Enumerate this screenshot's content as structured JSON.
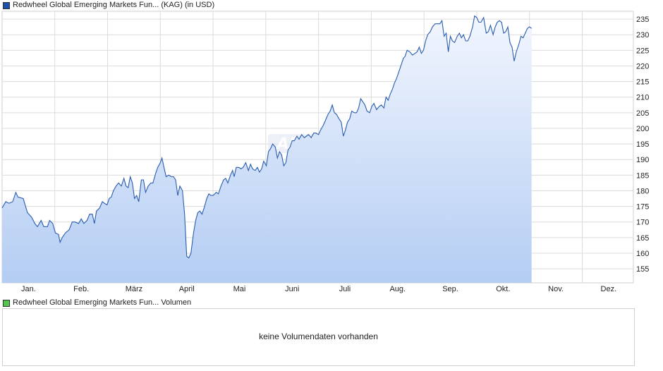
{
  "price_legend": {
    "name": "Redwheel Global Emerging Markets Fun...",
    "type": "(KAG)",
    "currency": "(in USD)",
    "color": "#1c4fb0"
  },
  "volume_legend": {
    "name": "Redwheel Global Emerging Markets Fun...",
    "label": "Volumen",
    "color": "#4fc64f"
  },
  "volume_message": "keine Volumendaten vorhanden",
  "watermark": "ARIVA.DE",
  "chart_data": {
    "type": "area",
    "title": "",
    "xlabel": "",
    "ylabel": "",
    "ylim": [
      150.5,
      237.5
    ],
    "yticks": [
      155,
      160,
      165,
      170,
      175,
      180,
      185,
      190,
      195,
      200,
      205,
      210,
      215,
      220,
      225,
      230,
      235
    ],
    "x_range": [
      0,
      11.97
    ],
    "month_ticks": [
      {
        "label": "Jan.",
        "pos": 0.5
      },
      {
        "label": "Feb.",
        "pos": 1.5
      },
      {
        "label": "März",
        "pos": 2.5
      },
      {
        "label": "April",
        "pos": 3.5
      },
      {
        "label": "Mai",
        "pos": 4.5
      },
      {
        "label": "Juni",
        "pos": 5.5
      },
      {
        "label": "Juli",
        "pos": 6.5
      },
      {
        "label": "Aug.",
        "pos": 7.5
      },
      {
        "label": "Sep.",
        "pos": 8.5
      },
      {
        "label": "Okt.",
        "pos": 9.5
      },
      {
        "label": "Nov.",
        "pos": 10.5
      },
      {
        "label": "Dez.",
        "pos": 11.5
      }
    ],
    "grid": true,
    "series": [
      {
        "line_color": "#2a5db0",
        "fill_top": "#f2f6fe",
        "fill_bottom": "#b4cdf3",
        "points": [
          [
            0.0,
            174.5
          ],
          [
            0.07,
            176.5
          ],
          [
            0.13,
            176.0
          ],
          [
            0.2,
            176.5
          ],
          [
            0.26,
            179.5
          ],
          [
            0.3,
            178.0
          ],
          [
            0.4,
            177.5
          ],
          [
            0.48,
            173.0
          ],
          [
            0.56,
            171.5
          ],
          [
            0.62,
            169.5
          ],
          [
            0.67,
            168.5
          ],
          [
            0.74,
            170.5
          ],
          [
            0.79,
            168.5
          ],
          [
            0.86,
            168.5
          ],
          [
            0.9,
            170.5
          ],
          [
            0.96,
            169.5
          ],
          [
            1.01,
            166.5
          ],
          [
            1.07,
            166.0
          ],
          [
            1.1,
            163.5
          ],
          [
            1.14,
            165.0
          ],
          [
            1.2,
            166.5
          ],
          [
            1.27,
            167.5
          ],
          [
            1.33,
            170.0
          ],
          [
            1.38,
            170.0
          ],
          [
            1.45,
            169.5
          ],
          [
            1.5,
            171.0
          ],
          [
            1.55,
            169.5
          ],
          [
            1.61,
            170.5
          ],
          [
            1.66,
            172.5
          ],
          [
            1.71,
            172.5
          ],
          [
            1.75,
            169.5
          ],
          [
            1.79,
            173.5
          ],
          [
            1.85,
            174.5
          ],
          [
            1.9,
            176.5
          ],
          [
            1.94,
            176.0
          ],
          [
            1.99,
            175.5
          ],
          [
            2.03,
            177.5
          ],
          [
            2.07,
            178.0
          ],
          [
            2.11,
            180.0
          ],
          [
            2.16,
            181.5
          ],
          [
            2.21,
            182.5
          ],
          [
            2.26,
            181.5
          ],
          [
            2.31,
            184.0
          ],
          [
            2.35,
            181.5
          ],
          [
            2.39,
            181.0
          ],
          [
            2.43,
            184.5
          ],
          [
            2.47,
            182.5
          ],
          [
            2.51,
            177.5
          ],
          [
            2.55,
            178.5
          ],
          [
            2.59,
            176.5
          ],
          [
            2.64,
            183.5
          ],
          [
            2.68,
            183.5
          ],
          [
            2.72,
            179.5
          ],
          [
            2.77,
            181.5
          ],
          [
            2.82,
            182.5
          ],
          [
            2.86,
            182.5
          ],
          [
            2.91,
            185.5
          ],
          [
            2.95,
            187.5
          ],
          [
            3.0,
            189.0
          ],
          [
            3.03,
            190.5
          ],
          [
            3.07,
            187.5
          ],
          [
            3.11,
            184.5
          ],
          [
            3.16,
            185.0
          ],
          [
            3.21,
            184.5
          ],
          [
            3.25,
            184.5
          ],
          [
            3.29,
            183.5
          ],
          [
            3.33,
            178.5
          ],
          [
            3.37,
            181.5
          ],
          [
            3.42,
            180.0
          ],
          [
            3.46,
            172.5
          ],
          [
            3.5,
            159.0
          ],
          [
            3.54,
            158.5
          ],
          [
            3.58,
            160.0
          ],
          [
            3.63,
            166.5
          ],
          [
            3.67,
            170.5
          ],
          [
            3.71,
            173.0
          ],
          [
            3.75,
            173.5
          ],
          [
            3.79,
            172.5
          ],
          [
            3.83,
            174.5
          ],
          [
            3.88,
            177.5
          ],
          [
            3.92,
            179.0
          ],
          [
            3.96,
            178.5
          ],
          [
            4.0,
            178.5
          ],
          [
            4.06,
            179.5
          ],
          [
            4.1,
            179.0
          ],
          [
            4.15,
            181.5
          ],
          [
            4.2,
            183.5
          ],
          [
            4.24,
            184.0
          ],
          [
            4.28,
            182.5
          ],
          [
            4.33,
            185.0
          ],
          [
            4.37,
            186.5
          ],
          [
            4.4,
            184.5
          ],
          [
            4.44,
            187.5
          ],
          [
            4.49,
            187.5
          ],
          [
            4.53,
            187.0
          ],
          [
            4.57,
            187.5
          ],
          [
            4.62,
            189.0
          ],
          [
            4.67,
            186.5
          ],
          [
            4.71,
            188.5
          ],
          [
            4.75,
            187.0
          ],
          [
            4.8,
            186.5
          ],
          [
            4.84,
            187.5
          ],
          [
            4.88,
            186.0
          ],
          [
            4.92,
            187.0
          ],
          [
            4.96,
            189.5
          ],
          [
            5.01,
            188.0
          ],
          [
            5.05,
            192.5
          ],
          [
            5.09,
            193.5
          ],
          [
            5.13,
            195.0
          ],
          [
            5.18,
            194.0
          ],
          [
            5.22,
            190.5
          ],
          [
            5.26,
            192.5
          ],
          [
            5.3,
            191.5
          ],
          [
            5.34,
            188.0
          ],
          [
            5.38,
            189.0
          ],
          [
            5.42,
            193.0
          ],
          [
            5.46,
            194.0
          ],
          [
            5.5,
            196.0
          ],
          [
            5.54,
            196.0
          ],
          [
            5.59,
            197.5
          ],
          [
            5.63,
            196.5
          ],
          [
            5.68,
            198.0
          ],
          [
            5.73,
            197.0
          ],
          [
            5.77,
            197.5
          ],
          [
            5.81,
            198.0
          ],
          [
            5.86,
            197.0
          ],
          [
            5.91,
            198.5
          ],
          [
            5.95,
            198.5
          ],
          [
            6.0,
            198.0
          ],
          [
            6.04,
            199.5
          ],
          [
            6.09,
            201.0
          ],
          [
            6.13,
            202.5
          ],
          [
            6.18,
            204.5
          ],
          [
            6.22,
            205.5
          ],
          [
            6.26,
            207.5
          ],
          [
            6.3,
            205.0
          ],
          [
            6.34,
            204.5
          ],
          [
            6.39,
            203.0
          ],
          [
            6.43,
            202.0
          ],
          [
            6.47,
            197.5
          ],
          [
            6.51,
            199.5
          ],
          [
            6.55,
            202.0
          ],
          [
            6.59,
            203.0
          ],
          [
            6.63,
            205.5
          ],
          [
            6.68,
            205.0
          ],
          [
            6.72,
            205.0
          ],
          [
            6.76,
            206.5
          ],
          [
            6.8,
            209.5
          ],
          [
            6.84,
            208.5
          ],
          [
            6.88,
            207.5
          ],
          [
            6.92,
            205.5
          ],
          [
            6.97,
            205.0
          ],
          [
            7.01,
            207.0
          ],
          [
            7.05,
            208.0
          ],
          [
            7.1,
            206.0
          ],
          [
            7.15,
            207.0
          ],
          [
            7.19,
            207.5
          ],
          [
            7.24,
            206.5
          ],
          [
            7.28,
            210.0
          ],
          [
            7.32,
            209.0
          ],
          [
            7.36,
            211.0
          ],
          [
            7.4,
            212.5
          ],
          [
            7.44,
            214.5
          ],
          [
            7.48,
            216.0
          ],
          [
            7.52,
            218.0
          ],
          [
            7.56,
            220.0
          ],
          [
            7.61,
            222.5
          ],
          [
            7.64,
            223.0
          ],
          [
            7.68,
            225.0
          ],
          [
            7.73,
            224.5
          ],
          [
            7.78,
            223.5
          ],
          [
            7.83,
            224.0
          ],
          [
            7.87,
            224.5
          ],
          [
            7.91,
            226.0
          ],
          [
            7.95,
            224.0
          ],
          [
            7.99,
            225.0
          ],
          [
            8.03,
            228.0
          ],
          [
            8.07,
            230.0
          ],
          [
            8.12,
            231.0
          ],
          [
            8.16,
            232.5
          ],
          [
            8.21,
            233.5
          ],
          [
            8.26,
            233.5
          ],
          [
            8.3,
            233.5
          ],
          [
            8.34,
            234.5
          ],
          [
            8.38,
            229.5
          ],
          [
            8.42,
            230.5
          ],
          [
            8.46,
            224.5
          ],
          [
            8.5,
            229.5
          ],
          [
            8.54,
            228.0
          ],
          [
            8.58,
            227.5
          ],
          [
            8.63,
            229.5
          ],
          [
            8.67,
            230.5
          ],
          [
            8.71,
            229.0
          ],
          [
            8.75,
            230.0
          ],
          [
            8.79,
            228.0
          ],
          [
            8.83,
            228.0
          ],
          [
            8.87,
            229.5
          ],
          [
            8.92,
            232.5
          ],
          [
            8.96,
            236.0
          ],
          [
            9.0,
            235.5
          ],
          [
            9.04,
            234.0
          ],
          [
            9.08,
            234.0
          ],
          [
            9.13,
            235.5
          ],
          [
            9.18,
            230.5
          ],
          [
            9.22,
            231.0
          ],
          [
            9.26,
            233.0
          ],
          [
            9.31,
            230.0
          ],
          [
            9.35,
            232.5
          ],
          [
            9.39,
            234.0
          ],
          [
            9.43,
            234.5
          ],
          [
            9.47,
            234.0
          ],
          [
            9.51,
            230.5
          ],
          [
            9.55,
            231.0
          ],
          [
            9.59,
            232.5
          ],
          [
            9.63,
            227.5
          ],
          [
            9.67,
            226.0
          ],
          [
            9.71,
            221.5
          ],
          [
            9.75,
            224.5
          ],
          [
            9.8,
            227.0
          ],
          [
            9.84,
            229.5
          ],
          [
            9.88,
            229.0
          ],
          [
            9.92,
            230.5
          ],
          [
            9.96,
            232.0
          ],
          [
            10.0,
            232.5
          ],
          [
            10.04,
            232.0
          ]
        ]
      }
    ]
  }
}
